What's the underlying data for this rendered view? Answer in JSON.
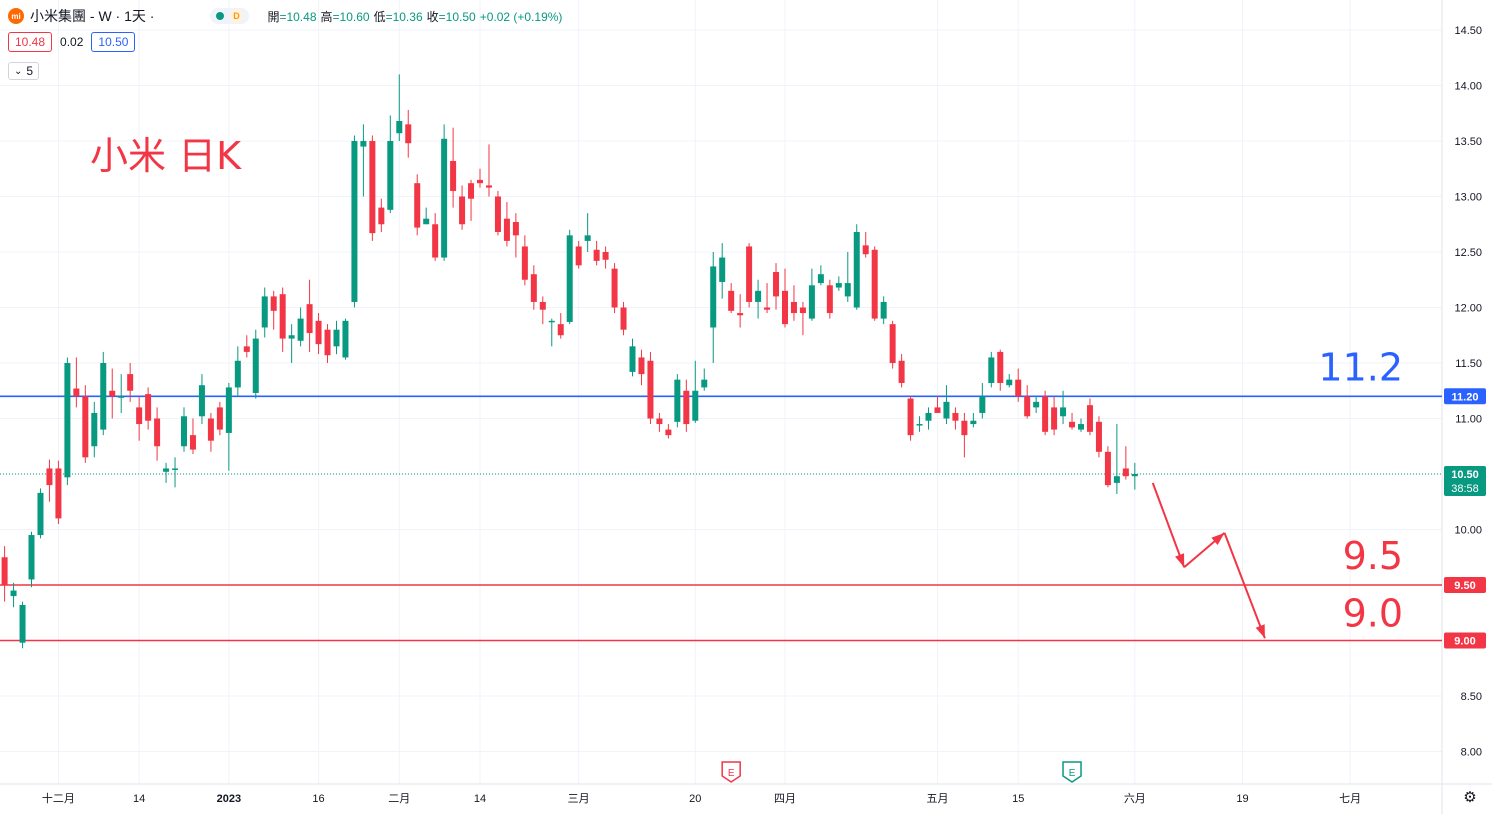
{
  "header": {
    "symbol_title": "小米集團 - W · 1天 ·",
    "logo_text": "mi",
    "interval_badge": "D",
    "ohlc": [
      {
        "k": "開",
        "v": "=10.48"
      },
      {
        "k": "高",
        "v": "=10.60"
      },
      {
        "k": "低",
        "v": "=10.36"
      },
      {
        "k": "收",
        "v": "=10.50"
      },
      {
        "k": "",
        "v": "+0.02 (+0.19%)"
      }
    ],
    "bid": "10.48",
    "spread": "0.02",
    "ask": "10.50",
    "indicators_count": "5"
  },
  "annotation_title": "小米 日K",
  "colors": {
    "up": "#089981",
    "down": "#f23645",
    "resistance": "#2962ff",
    "support": "#f23645",
    "grid": "#f0f3fa"
  },
  "chart_data": {
    "type": "candlestick",
    "ylim": [
      7.8,
      14.6
    ],
    "y_ticks": [
      "14.50",
      "14.00",
      "13.50",
      "13.00",
      "12.50",
      "12.00",
      "11.50",
      "11.00",
      "10.50",
      "10.00",
      "9.50",
      "9.00",
      "8.50",
      "8.00"
    ],
    "x_ticks": [
      {
        "label": "十二月",
        "i": 6
      },
      {
        "label": "14",
        "i": 15
      },
      {
        "label": "2023",
        "i": 25
      },
      {
        "label": "16",
        "i": 35
      },
      {
        "label": "二月",
        "i": 44
      },
      {
        "label": "14",
        "i": 53
      },
      {
        "label": "三月",
        "i": 64
      },
      {
        "label": "20",
        "i": 77
      },
      {
        "label": "四月",
        "i": 87
      },
      {
        "label": "五月",
        "i": 104
      },
      {
        "label": "15",
        "i": 113
      },
      {
        "label": "六月",
        "i": 126
      },
      {
        "label": "19",
        "i": 138
      },
      {
        "label": "七月",
        "i": 150
      }
    ],
    "candles": [
      [
        9.75,
        9.5,
        9.85,
        9.35
      ],
      [
        9.4,
        9.45,
        9.52,
        9.3
      ],
      [
        8.98,
        9.32,
        9.35,
        8.93
      ],
      [
        9.55,
        9.95,
        9.98,
        9.48
      ],
      [
        9.95,
        10.33,
        10.37,
        9.92
      ],
      [
        10.55,
        10.4,
        10.63,
        10.25
      ],
      [
        10.55,
        10.1,
        10.62,
        10.05
      ],
      [
        10.47,
        11.5,
        11.55,
        10.4
      ],
      [
        11.27,
        11.2,
        11.55,
        11.1
      ],
      [
        11.2,
        10.65,
        11.3,
        10.6
      ],
      [
        10.75,
        11.05,
        11.15,
        10.65
      ],
      [
        10.9,
        11.5,
        11.6,
        10.85
      ],
      [
        11.25,
        11.2,
        11.45,
        11.0
      ],
      [
        11.2,
        11.2,
        11.4,
        11.05
      ],
      [
        11.4,
        11.25,
        11.5,
        11.15
      ],
      [
        11.1,
        10.95,
        11.2,
        10.8
      ],
      [
        11.22,
        10.98,
        11.28,
        10.9
      ],
      [
        11.0,
        10.75,
        11.1,
        10.62
      ],
      [
        10.52,
        10.55,
        10.6,
        10.42
      ],
      [
        10.55,
        10.55,
        10.65,
        10.38
      ],
      [
        10.75,
        11.02,
        11.1,
        10.7
      ],
      [
        10.85,
        10.72,
        11.0,
        10.68
      ],
      [
        11.02,
        11.3,
        11.4,
        10.95
      ],
      [
        11.0,
        10.8,
        11.05,
        10.7
      ],
      [
        11.1,
        10.9,
        11.15,
        10.85
      ],
      [
        10.87,
        11.28,
        11.32,
        10.53
      ],
      [
        11.28,
        11.52,
        11.65,
        11.2
      ],
      [
        11.65,
        11.6,
        11.75,
        11.55
      ],
      [
        11.23,
        11.72,
        11.8,
        11.18
      ],
      [
        11.82,
        12.1,
        12.18,
        11.73
      ],
      [
        12.1,
        11.97,
        12.15,
        11.8
      ],
      [
        12.12,
        11.72,
        12.18,
        11.6
      ],
      [
        11.72,
        11.75,
        11.85,
        11.5
      ],
      [
        11.7,
        11.9,
        12.0,
        11.65
      ],
      [
        12.03,
        11.77,
        12.25,
        11.6
      ],
      [
        11.88,
        11.67,
        11.95,
        11.58
      ],
      [
        11.8,
        11.57,
        11.85,
        11.5
      ],
      [
        11.65,
        11.8,
        11.88,
        11.58
      ],
      [
        11.55,
        11.88,
        11.9,
        11.53
      ],
      [
        12.05,
        13.5,
        13.55,
        12.0
      ],
      [
        13.45,
        13.5,
        13.65,
        13.0
      ],
      [
        13.5,
        12.67,
        13.55,
        12.6
      ],
      [
        12.9,
        12.75,
        12.98,
        12.68
      ],
      [
        12.88,
        13.5,
        13.73,
        12.85
      ],
      [
        13.57,
        13.68,
        14.1,
        13.5
      ],
      [
        13.65,
        13.48,
        13.78,
        13.35
      ],
      [
        13.12,
        12.72,
        13.2,
        12.65
      ],
      [
        12.75,
        12.8,
        12.9,
        12.75
      ],
      [
        12.75,
        12.45,
        12.85,
        12.42
      ],
      [
        12.45,
        13.52,
        13.65,
        12.42
      ],
      [
        13.32,
        13.05,
        13.62,
        12.9
      ],
      [
        13.0,
        12.75,
        13.1,
        12.7
      ],
      [
        13.12,
        12.98,
        13.15,
        12.78
      ],
      [
        13.15,
        13.12,
        13.25,
        13.08
      ],
      [
        13.1,
        13.08,
        13.47,
        13.0
      ],
      [
        13.0,
        12.68,
        13.05,
        12.65
      ],
      [
        12.8,
        12.6,
        12.95,
        12.55
      ],
      [
        12.77,
        12.65,
        12.85,
        12.45
      ],
      [
        12.55,
        12.25,
        12.65,
        12.2
      ],
      [
        12.3,
        12.05,
        12.38,
        11.98
      ],
      [
        12.05,
        11.98,
        12.1,
        11.85
      ],
      [
        11.88,
        11.88,
        11.9,
        11.65
      ],
      [
        11.85,
        11.75,
        11.95,
        11.72
      ],
      [
        11.87,
        12.65,
        12.7,
        11.85
      ],
      [
        12.55,
        12.38,
        12.6,
        12.35
      ],
      [
        12.6,
        12.65,
        12.85,
        12.5
      ],
      [
        12.52,
        12.42,
        12.6,
        12.38
      ],
      [
        12.5,
        12.43,
        12.55,
        12.35
      ],
      [
        12.35,
        12.0,
        12.4,
        11.95
      ],
      [
        12.0,
        11.8,
        12.05,
        11.75
      ],
      [
        11.42,
        11.65,
        11.72,
        11.38
      ],
      [
        11.55,
        11.4,
        11.62,
        11.3
      ],
      [
        11.52,
        11.0,
        11.6,
        10.95
      ],
      [
        11.0,
        10.95,
        11.05,
        10.88
      ],
      [
        10.9,
        10.85,
        10.95,
        10.82
      ],
      [
        10.97,
        11.35,
        11.4,
        10.92
      ],
      [
        11.25,
        10.95,
        11.35,
        10.88
      ],
      [
        10.98,
        11.25,
        11.52,
        10.96
      ],
      [
        11.28,
        11.35,
        11.45,
        11.25
      ],
      [
        11.82,
        12.37,
        12.5,
        11.5
      ],
      [
        12.23,
        12.45,
        12.58,
        12.08
      ],
      [
        12.15,
        11.97,
        12.22,
        11.95
      ],
      [
        11.95,
        11.93,
        12.12,
        11.82
      ],
      [
        12.55,
        12.05,
        12.58,
        12.0
      ],
      [
        12.05,
        12.15,
        12.25,
        11.9
      ],
      [
        12.0,
        11.98,
        12.22,
        11.95
      ],
      [
        12.32,
        12.1,
        12.4,
        11.98
      ],
      [
        12.15,
        11.85,
        12.35,
        11.82
      ],
      [
        12.05,
        11.95,
        12.2,
        11.88
      ],
      [
        12.0,
        11.95,
        12.05,
        11.75
      ],
      [
        11.9,
        12.2,
        12.35,
        11.88
      ],
      [
        12.22,
        12.3,
        12.38,
        12.2
      ],
      [
        12.2,
        11.95,
        12.25,
        11.9
      ],
      [
        12.18,
        12.22,
        12.28,
        12.15
      ],
      [
        12.1,
        12.22,
        12.5,
        12.05
      ],
      [
        12.0,
        12.68,
        12.75,
        11.98
      ],
      [
        12.56,
        12.48,
        12.68,
        12.45
      ],
      [
        12.52,
        11.9,
        12.55,
        11.88
      ],
      [
        11.9,
        12.05,
        12.1,
        11.85
      ],
      [
        11.85,
        11.5,
        11.88,
        11.45
      ],
      [
        11.52,
        11.32,
        11.58,
        11.28
      ],
      [
        11.18,
        10.85,
        11.2,
        10.8
      ],
      [
        10.95,
        10.95,
        11.02,
        10.88
      ],
      [
        10.98,
        11.05,
        11.1,
        10.9
      ],
      [
        11.1,
        11.05,
        11.2,
        11.05
      ],
      [
        11.0,
        11.15,
        11.3,
        10.95
      ],
      [
        11.05,
        10.98,
        11.1,
        10.9
      ],
      [
        10.98,
        10.85,
        11.05,
        10.65
      ],
      [
        10.95,
        10.98,
        11.05,
        10.92
      ],
      [
        11.05,
        11.2,
        11.32,
        11.0
      ],
      [
        11.32,
        11.55,
        11.6,
        11.28
      ],
      [
        11.6,
        11.32,
        11.62,
        11.25
      ],
      [
        11.3,
        11.35,
        11.4,
        11.28
      ],
      [
        11.35,
        11.2,
        11.45,
        11.15
      ],
      [
        11.2,
        11.02,
        11.3,
        11.0
      ],
      [
        11.1,
        11.15,
        11.2,
        11.05
      ],
      [
        11.2,
        10.88,
        11.25,
        10.85
      ],
      [
        11.1,
        10.9,
        11.2,
        10.85
      ],
      [
        11.02,
        11.1,
        11.25,
        10.95
      ],
      [
        10.97,
        10.92,
        11.05,
        10.9
      ],
      [
        10.9,
        10.95,
        11.0,
        10.88
      ],
      [
        11.12,
        10.88,
        11.18,
        10.85
      ],
      [
        10.97,
        10.7,
        11.02,
        10.65
      ],
      [
        10.7,
        10.4,
        10.75,
        10.38
      ],
      [
        10.42,
        10.48,
        10.95,
        10.32
      ],
      [
        10.55,
        10.48,
        10.75,
        10.45
      ],
      [
        10.48,
        10.5,
        10.6,
        10.36
      ]
    ],
    "horizontal_lines": [
      {
        "value": 11.2,
        "badge": "11.20",
        "label": "11.2",
        "color": "#2962ff"
      },
      {
        "value": 9.5,
        "badge": "9.50",
        "label": "9.5",
        "color": "#f23645"
      },
      {
        "value": 9.0,
        "badge": "9.00",
        "label": "9.0",
        "color": "#f23645"
      }
    ],
    "last_price": {
      "value": 10.5,
      "badge": "10.50",
      "countdown": "38:58"
    },
    "earnings_markers": [
      {
        "i": 81,
        "label": "E",
        "type": "past"
      },
      {
        "i": 119,
        "label": "E",
        "type": "upcoming"
      }
    ],
    "forecast_path": [
      [
        128,
        10.42
      ],
      [
        131.5,
        9.66
      ],
      [
        136,
        9.97
      ],
      [
        140.5,
        9.02
      ]
    ]
  }
}
